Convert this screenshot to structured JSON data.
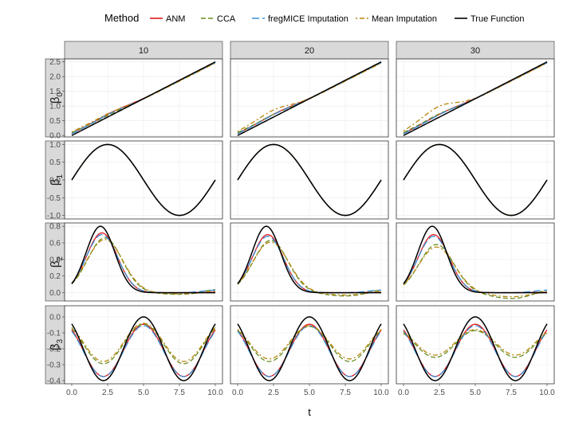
{
  "chart_data": {
    "type": "line",
    "legend": {
      "title": "Method",
      "placement": "top",
      "entries": [
        {
          "name": "ANM",
          "color": "#e41a1c",
          "dash": "solid"
        },
        {
          "name": "CCA",
          "color": "#6b8e23",
          "dash": "dashed"
        },
        {
          "name": "fregMICE Imputation",
          "color": "#3a8fd9",
          "dash": "longdash"
        },
        {
          "name": "Mean Imputation",
          "color": "#b8860b",
          "dash": "dotdash"
        },
        {
          "name": "True Function",
          "color": "#000000",
          "dash": "solid"
        }
      ]
    },
    "columns": [
      "10",
      "20",
      "30"
    ],
    "rows": [
      {
        "symbol": "β",
        "subscript": "0",
        "ylim": [
          -0.05,
          2.6
        ],
        "yticks": [
          "0.0",
          "0.5",
          "1.0",
          "1.5",
          "2.0",
          "2.5"
        ],
        "tick_values": [
          0,
          0.5,
          1,
          1.5,
          2,
          2.5
        ],
        "kind": "b0",
        "mean_bump": [
          0.12,
          0.25,
          0.38
        ],
        "cca_bump": [
          0.06,
          0.1,
          0.12
        ]
      },
      {
        "symbol": "β",
        "subscript": "1",
        "ylim": [
          -1.1,
          1.1
        ],
        "yticks": [
          "-1.0",
          "-0.5",
          "0.0",
          "0.5",
          "1.0"
        ],
        "tick_values": [
          -1,
          -0.5,
          0,
          0.5,
          1
        ],
        "kind": "b1"
      },
      {
        "symbol": "β",
        "subscript": "2",
        "ylim": [
          -0.1,
          0.84
        ],
        "yticks": [
          "0.0",
          "0.2",
          "0.4",
          "0.6",
          "0.8"
        ],
        "tick_values": [
          0,
          0.2,
          0.4,
          0.6,
          0.8
        ],
        "kind": "b2",
        "peaks": [
          [
            0.72,
            0.7,
            0.66,
            0.64
          ],
          [
            0.7,
            0.68,
            0.63,
            0.61
          ],
          [
            0.7,
            0.68,
            0.58,
            0.55
          ]
        ],
        "tail_dip": [
          0.02,
          0.04,
          0.07
        ]
      },
      {
        "symbol": "β",
        "subscript": "3",
        "ylim": [
          -0.42,
          0.07
        ],
        "yticks": [
          "-0.4",
          "-0.3",
          "-0.2",
          "-0.1",
          "0.0"
        ],
        "tick_values": [
          -0.4,
          -0.3,
          -0.2,
          -0.1,
          0
        ],
        "kind": "b3",
        "shrink": [
          [
            0.82,
            0.8,
            0.62,
            0.6
          ],
          [
            0.82,
            0.8,
            0.55,
            0.52
          ],
          [
            0.82,
            0.8,
            0.42,
            0.4
          ]
        ]
      }
    ],
    "x": {
      "label": "t",
      "xlim": [
        -0.5,
        10.5
      ],
      "ticks": [
        0,
        2.5,
        5,
        7.5,
        10
      ],
      "tick_labels": [
        "0.0",
        "2.5",
        "5.0",
        "7.5",
        "10.0"
      ]
    },
    "grid": true
  }
}
